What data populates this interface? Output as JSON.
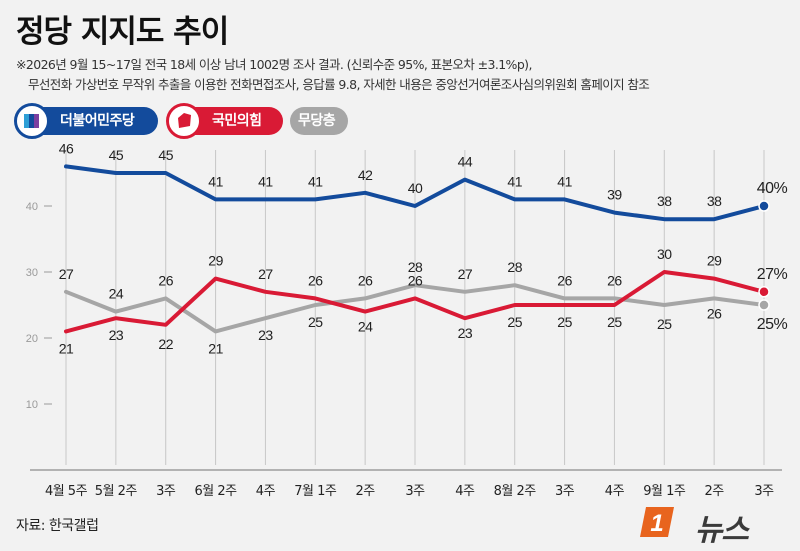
{
  "title": "정당 지지도 추이",
  "note_line1": "※2026년 9월 15~17일 전국 18세 이상 남녀 1002명 조사 결과. (신뢰수준 95%, 표본오차 ±3.1%p),",
  "note_line2": "무선전화 가상번호 무작위 추출을 이용한 전화면접조사, 응답률 9.8, 자세한 내용은 중앙선거여론조사심의위원회 홈페이지 참조",
  "legend": {
    "dem": "더불어민주당",
    "ppp": "국민의힘",
    "none": "무당층"
  },
  "source": "자료: 한국갤럽",
  "brand": "뉴스",
  "brand_badge": "1",
  "colors": {
    "dem": "#134b9c",
    "ppp": "#d91a35",
    "none": "#a6a6a6",
    "grid": "#c8c8c8",
    "bg": "#f2f2f2"
  },
  "chart_data": {
    "type": "line",
    "categories": [
      "4월 5주",
      "5월 2주",
      "3주",
      "6월 2주",
      "4주",
      "7월 1주",
      "2주",
      "3주",
      "4주",
      "8월 2주",
      "3주",
      "4주",
      "9월 1주",
      "2주",
      "3주"
    ],
    "ytick_labels": [
      "10",
      "20",
      "30",
      "40"
    ],
    "ylim": [
      0,
      50
    ],
    "series": [
      {
        "name": "더불어민주당",
        "key": "dem",
        "values": [
          46,
          45,
          45,
          41,
          41,
          41,
          42,
          40,
          44,
          41,
          41,
          39,
          38,
          38,
          40
        ]
      },
      {
        "name": "국민의힘",
        "key": "ppp",
        "values": [
          21,
          23,
          22,
          29,
          27,
          26,
          24,
          26,
          23,
          25,
          25,
          25,
          30,
          29,
          27
        ]
      },
      {
        "name": "무당층",
        "key": "none",
        "values": [
          27,
          24,
          26,
          21,
          23,
          25,
          26,
          28,
          27,
          28,
          26,
          26,
          25,
          26,
          25
        ]
      }
    ],
    "value_labels": {
      "dem": [
        "46",
        "45",
        "45",
        "41",
        "41",
        "41",
        "42",
        "40",
        "44",
        "41",
        "41",
        "39",
        "38",
        "38",
        "40%"
      ],
      "ppp": [
        "21",
        "23",
        "22",
        "29",
        "27",
        "26",
        "24",
        "26",
        "23",
        "25",
        "25",
        "25",
        "30",
        "29",
        "27%"
      ],
      "none": [
        "27",
        "24",
        "26",
        "21",
        "23",
        "25",
        "26",
        "28",
        "27",
        "28",
        "26",
        "26",
        "25",
        "26",
        "25%"
      ]
    }
  }
}
